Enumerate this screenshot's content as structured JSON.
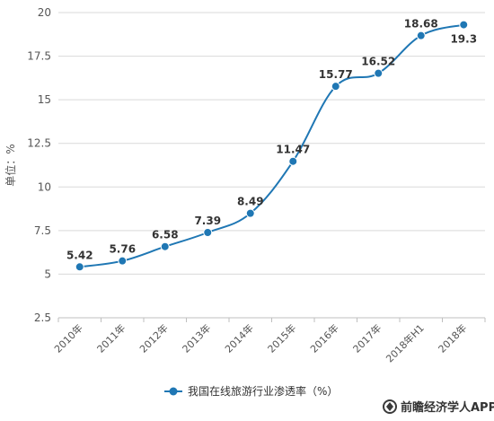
{
  "chart_data": {
    "type": "line",
    "ylabel": "单位：%",
    "ylim": [
      2.5,
      20
    ],
    "yticks": [
      2.5,
      5,
      7.5,
      10,
      12.5,
      15,
      17.5,
      20
    ],
    "ytick_labels": [
      "2.5",
      "5",
      "7.5",
      "10",
      "12.5",
      "15",
      "17.5",
      "20"
    ],
    "categories": [
      "2010年",
      "2011年",
      "2012年",
      "2013年",
      "2014年",
      "2015年",
      "2016年",
      "2017年",
      "2018年H1",
      "2018年"
    ],
    "series": [
      {
        "name": "我国在线旅游行业渗透率（%）",
        "values": [
          5.42,
          5.76,
          6.58,
          7.39,
          8.49,
          11.47,
          15.77,
          16.52,
          18.68,
          19.3
        ],
        "labels": [
          "5.42",
          "5.76",
          "6.58",
          "7.39",
          "8.49",
          "11.47",
          "15.77",
          "16.52",
          "18.68",
          "19.3"
        ],
        "color": "#1f77b4"
      }
    ],
    "grid": "horizontal",
    "legend_position": "bottom-center",
    "smooth": true
  },
  "watermark": {
    "text": "前瞻经济学人APP",
    "icon": "qianzhan-logo-icon"
  }
}
